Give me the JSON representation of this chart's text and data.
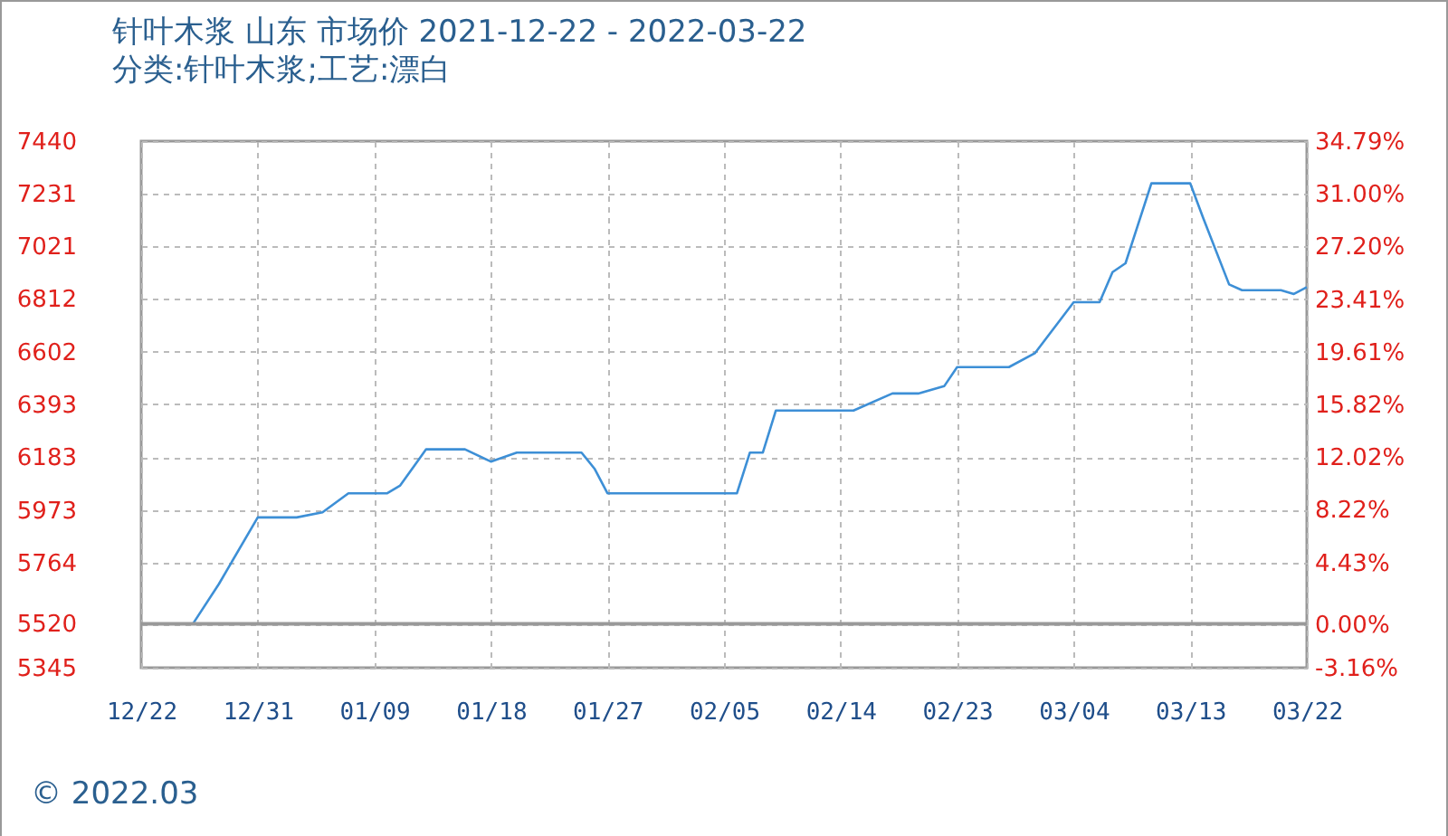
{
  "chart_data": {
    "type": "line",
    "title": "针叶木浆 山东 市场价 2021-12-22 - 2022-03-22",
    "subtitle": "分类:针叶木浆;工艺:漂白",
    "x": [
      "2021-12-22",
      "2021-12-26",
      "2021-12-28",
      "2021-12-31",
      "2022-01-03",
      "2022-01-05",
      "2022-01-07",
      "2022-01-10",
      "2022-01-11",
      "2022-01-13",
      "2022-01-16",
      "2022-01-18",
      "2022-01-20",
      "2022-01-25",
      "2022-01-26",
      "2022-01-27",
      "2022-02-06",
      "2022-02-07",
      "2022-02-08",
      "2022-02-09",
      "2022-02-15",
      "2022-02-18",
      "2022-02-20",
      "2022-02-22",
      "2022-02-23",
      "2022-02-27",
      "2022-03-01",
      "2022-03-04",
      "2022-03-06",
      "2022-03-07",
      "2022-03-08",
      "2022-03-10",
      "2022-03-13",
      "2022-03-14",
      "2022-03-16",
      "2022-03-17",
      "2022-03-20",
      "2022-03-21",
      "2022-03-22"
    ],
    "series": [
      {
        "color": "#3d8fd6",
        "values": [
          5520,
          5520,
          5678,
          5943,
          5943,
          5963,
          6039,
          6039,
          6070,
          6214,
          6214,
          6165,
          6201,
          6201,
          6137,
          6039,
          6039,
          6201,
          6201,
          6368,
          6368,
          6436,
          6436,
          6465,
          6541,
          6541,
          6596,
          6799,
          6799,
          6919,
          6954,
          7272,
          7272,
          7134,
          6870,
          6847,
          6847,
          6832,
          6859
        ]
      }
    ],
    "xlim": [
      "2021-12-22",
      "2022-03-22"
    ],
    "xticks": [
      {
        "value": "2021-12-22",
        "label": "12/22"
      },
      {
        "value": "2021-12-31",
        "label": "12/31"
      },
      {
        "value": "2022-01-09",
        "label": "01/09"
      },
      {
        "value": "2022-01-18",
        "label": "01/18"
      },
      {
        "value": "2022-01-27",
        "label": "01/27"
      },
      {
        "value": "2022-02-05",
        "label": "02/05"
      },
      {
        "value": "2022-02-14",
        "label": "02/14"
      },
      {
        "value": "2022-02-23",
        "label": "02/23"
      },
      {
        "value": "2022-03-04",
        "label": "03/04"
      },
      {
        "value": "2022-03-13",
        "label": "03/13"
      },
      {
        "value": "2022-03-22",
        "label": "03/22"
      }
    ],
    "ylim": [
      5345,
      7440
    ],
    "yticks": [
      5345,
      5520,
      5764,
      5973,
      6183,
      6393,
      6602,
      6812,
      7021,
      7231,
      7440
    ],
    "y2lim": [
      -3.16,
      34.79
    ],
    "y2ticks": [
      {
        "value": -3.16,
        "label": "-3.16%"
      },
      {
        "value": 0,
        "label": "0.00%"
      },
      {
        "value": 4.43,
        "label": "4.43%"
      },
      {
        "value": 8.22,
        "label": "8.22%"
      },
      {
        "value": 12.02,
        "label": "12.02%"
      },
      {
        "value": 15.82,
        "label": "15.82%"
      },
      {
        "value": 19.61,
        "label": "19.61%"
      },
      {
        "value": 23.41,
        "label": "23.41%"
      },
      {
        "value": 27.2,
        "label": "27.20%"
      },
      {
        "value": 31.0,
        "label": "31.00%"
      },
      {
        "value": 34.79,
        "label": "34.79%"
      }
    ],
    "ref_lines": [
      {
        "axis": "y2",
        "value": 0,
        "color": "#999999"
      }
    ],
    "grid": true,
    "marker": "none",
    "line_style": "solid",
    "annotations": [
      "© 2022.03"
    ]
  }
}
